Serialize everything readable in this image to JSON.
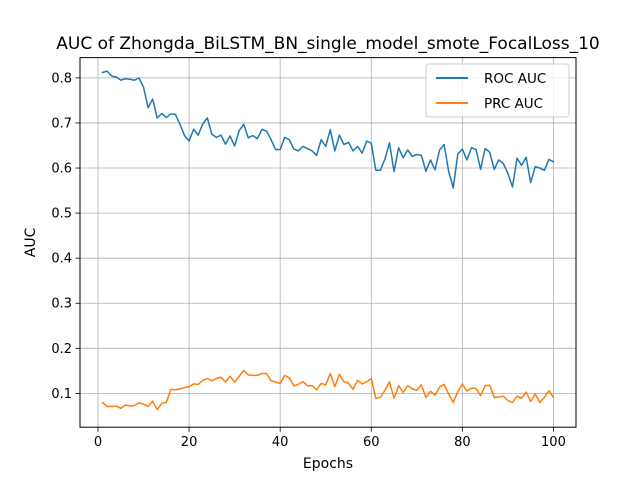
{
  "chart_data": {
    "type": "line",
    "title": "AUC of Zhongda_BiLSTM_BN_single_model_smote_FocalLoss_10",
    "xlabel": "Epochs",
    "ylabel": "AUC",
    "xlim": [
      -3.95,
      104.95
    ],
    "ylim": [
      0.025,
      0.845
    ],
    "xticks": [
      0,
      20,
      40,
      60,
      80,
      100
    ],
    "yticks": [
      0.1,
      0.2,
      0.3,
      0.4,
      0.5,
      0.6,
      0.7,
      0.8
    ],
    "grid": true,
    "legend_position": "top-right",
    "x": [
      1,
      2,
      3,
      4,
      5,
      6,
      7,
      8,
      9,
      10,
      11,
      12,
      13,
      14,
      15,
      16,
      17,
      18,
      19,
      20,
      21,
      22,
      23,
      24,
      25,
      26,
      27,
      28,
      29,
      30,
      31,
      32,
      33,
      34,
      35,
      36,
      37,
      38,
      39,
      40,
      41,
      42,
      43,
      44,
      45,
      46,
      47,
      48,
      49,
      50,
      51,
      52,
      53,
      54,
      55,
      56,
      57,
      58,
      59,
      60,
      61,
      62,
      63,
      64,
      65,
      66,
      67,
      68,
      69,
      70,
      71,
      72,
      73,
      74,
      75,
      76,
      77,
      78,
      79,
      80,
      81,
      82,
      83,
      84,
      85,
      86,
      87,
      88,
      89,
      90,
      91,
      92,
      93,
      94,
      95,
      96,
      97,
      98,
      99,
      100
    ],
    "series": [
      {
        "name": "ROC AUC",
        "color": "#1f77b4",
        "values": [
          0.812,
          0.815,
          0.804,
          0.802,
          0.795,
          0.798,
          0.797,
          0.795,
          0.8,
          0.779,
          0.734,
          0.753,
          0.711,
          0.721,
          0.712,
          0.72,
          0.719,
          0.697,
          0.672,
          0.66,
          0.686,
          0.673,
          0.698,
          0.711,
          0.675,
          0.668,
          0.673,
          0.653,
          0.671,
          0.649,
          0.683,
          0.697,
          0.667,
          0.672,
          0.665,
          0.686,
          0.682,
          0.663,
          0.641,
          0.641,
          0.668,
          0.663,
          0.642,
          0.638,
          0.648,
          0.643,
          0.638,
          0.628,
          0.663,
          0.648,
          0.685,
          0.638,
          0.673,
          0.652,
          0.657,
          0.638,
          0.648,
          0.633,
          0.66,
          0.655,
          0.595,
          0.595,
          0.62,
          0.656,
          0.592,
          0.645,
          0.623,
          0.64,
          0.626,
          0.63,
          0.628,
          0.593,
          0.618,
          0.596,
          0.64,
          0.652,
          0.592,
          0.556,
          0.631,
          0.642,
          0.618,
          0.645,
          0.641,
          0.597,
          0.643,
          0.635,
          0.597,
          0.618,
          0.61,
          0.588,
          0.558,
          0.622,
          0.606,
          0.624,
          0.568,
          0.603,
          0.6,
          0.595,
          0.619,
          0.614
        ]
      },
      {
        "name": "PRC AUC",
        "color": "#ff7f0e",
        "values": [
          0.08,
          0.071,
          0.071,
          0.072,
          0.067,
          0.074,
          0.072,
          0.073,
          0.079,
          0.076,
          0.071,
          0.083,
          0.064,
          0.078,
          0.08,
          0.109,
          0.108,
          0.11,
          0.113,
          0.115,
          0.121,
          0.12,
          0.129,
          0.133,
          0.128,
          0.133,
          0.136,
          0.125,
          0.138,
          0.125,
          0.138,
          0.151,
          0.141,
          0.14,
          0.14,
          0.144,
          0.144,
          0.128,
          0.125,
          0.122,
          0.14,
          0.134,
          0.117,
          0.12,
          0.126,
          0.117,
          0.117,
          0.108,
          0.122,
          0.119,
          0.144,
          0.115,
          0.142,
          0.126,
          0.123,
          0.109,
          0.129,
          0.121,
          0.126,
          0.133,
          0.089,
          0.091,
          0.107,
          0.126,
          0.089,
          0.117,
          0.102,
          0.117,
          0.11,
          0.107,
          0.119,
          0.091,
          0.105,
          0.096,
          0.114,
          0.12,
          0.098,
          0.08,
          0.104,
          0.121,
          0.105,
          0.112,
          0.111,
          0.095,
          0.117,
          0.118,
          0.091,
          0.092,
          0.094,
          0.084,
          0.08,
          0.094,
          0.089,
          0.103,
          0.082,
          0.099,
          0.08,
          0.091,
          0.106,
          0.091
        ]
      }
    ]
  }
}
